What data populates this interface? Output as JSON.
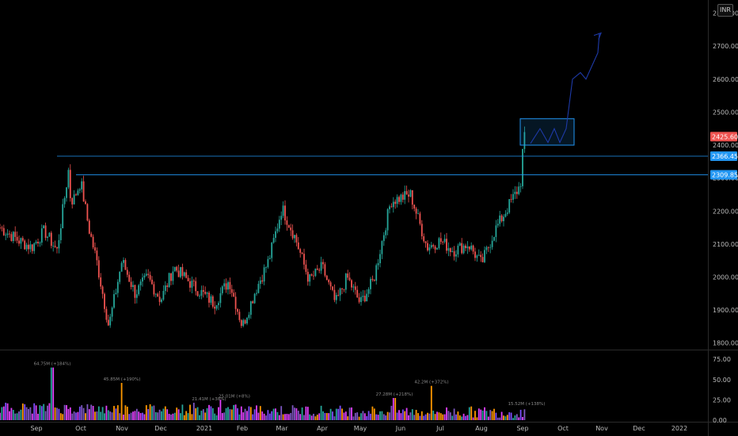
{
  "currency_button": "INR",
  "colors": {
    "up": "#26a69a",
    "down": "#ef5350",
    "level": "#2196f3",
    "projection": "#1e3aa8",
    "last_price": "#ef5350"
  },
  "chart_data": {
    "type": "candlestick",
    "title": "",
    "currency": "INR",
    "y_axis": {
      "min": 1780,
      "max": 2840,
      "ticks": [
        "1800.00",
        "1900.00",
        "2000.00",
        "2100.00",
        "2200.00",
        "2300.00",
        "2400.00",
        "2500.00",
        "2600.00",
        "2700.00",
        "2800.00"
      ]
    },
    "x_axis_labels": [
      "Sep",
      "Oct",
      "Nov",
      "Dec",
      "2021",
      "Feb",
      "Mar",
      "Apr",
      "May",
      "Jun",
      "Jul",
      "Aug",
      "Sep",
      "Oct",
      "Nov",
      "Dec",
      "2022"
    ],
    "price_labels": {
      "last": "2425.60",
      "level_high": "2366.45",
      "level_low": "2309.85"
    },
    "horizontal_levels": [
      {
        "value": 2366.45,
        "from": "Sep"
      },
      {
        "value": 2309.85,
        "from": "Oct"
      }
    ],
    "close_path": [
      [
        "Sep",
        2150
      ],
      [
        "Sep",
        2110
      ],
      [
        "Sep",
        2090
      ],
      [
        "Sep",
        2140
      ],
      [
        "Sep",
        2080
      ],
      [
        "Sep",
        2350
      ],
      [
        "Oct",
        2280
      ],
      [
        "Oct",
        2230
      ],
      [
        "Oct",
        2290
      ],
      [
        "Oct",
        2150
      ],
      [
        "Oct",
        2050
      ],
      [
        "Nov",
        1850
      ],
      [
        "Nov",
        2050
      ],
      [
        "Nov",
        1950
      ],
      [
        "Dec",
        2000
      ],
      [
        "Dec",
        1930
      ],
      [
        "Dec",
        2030
      ],
      [
        "2021",
        1970
      ],
      [
        "2021",
        1920
      ],
      [
        "Feb",
        1990
      ],
      [
        "Feb",
        1850
      ],
      [
        "Feb",
        1960
      ],
      [
        "Mar",
        2050
      ],
      [
        "Mar",
        2210
      ],
      [
        "Mar",
        2120
      ],
      [
        "Apr",
        1990
      ],
      [
        "Apr",
        2030
      ],
      [
        "Apr",
        1920
      ],
      [
        "May",
        2000
      ],
      [
        "May",
        1920
      ],
      [
        "May",
        1990
      ],
      [
        "Jun",
        2230
      ],
      [
        "Jun",
        2250
      ],
      [
        "Jul",
        2090
      ],
      [
        "Jul",
        2110
      ],
      [
        "Jul",
        2080
      ],
      [
        "Aug",
        2100
      ],
      [
        "Aug",
        2040
      ],
      [
        "Aug",
        2140
      ],
      [
        "Sep",
        2280
      ],
      [
        "Sep",
        2380
      ],
      [
        "Sep",
        2425.6
      ]
    ],
    "volume": {
      "y_ticks": [
        "0.00",
        "25.00",
        "50.00",
        "75.00"
      ],
      "annotations": [
        "64.75M (+184%)",
        "45.85M (+190%)",
        "21.41M (+38%)",
        "25.01M (+8%)",
        "27.28M (+218%)",
        "42.2M (+372%)",
        "15.52M (+138%)"
      ]
    },
    "projection": {
      "box": {
        "price_low": 2400,
        "price_high": 2480,
        "from": "Sep",
        "to": "Oct"
      },
      "zigzag_target": 2740
    }
  }
}
